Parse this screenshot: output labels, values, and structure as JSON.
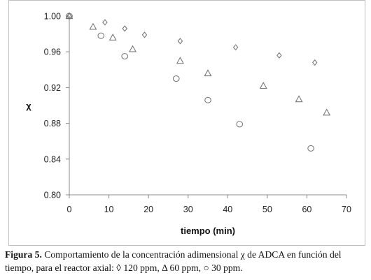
{
  "chart_data": {
    "type": "scatter",
    "xlabel": "tiempo (min)",
    "ylabel": "χ",
    "xlim": [
      0,
      70
    ],
    "ylim": [
      0.8,
      1.0
    ],
    "x_ticks": [
      "0",
      "10",
      "20",
      "30",
      "40",
      "50",
      "60",
      "70"
    ],
    "y_ticks": [
      "0.80",
      "0.84",
      "0.88",
      "0.92",
      "0.96",
      "1.00"
    ],
    "grid": false,
    "legend": "none",
    "series": [
      {
        "marker": "diamond",
        "points": [
          [
            0,
            1.0
          ],
          [
            9,
            0.993
          ],
          [
            14,
            0.986
          ],
          [
            19,
            0.979
          ],
          [
            28,
            0.972
          ],
          [
            42,
            0.965
          ],
          [
            53,
            0.956
          ],
          [
            62,
            0.948
          ]
        ]
      },
      {
        "marker": "triangle",
        "points": [
          [
            0,
            1.0
          ],
          [
            6,
            0.988
          ],
          [
            11,
            0.976
          ],
          [
            16,
            0.963
          ],
          [
            28,
            0.95
          ],
          [
            35,
            0.936
          ],
          [
            49,
            0.922
          ],
          [
            58,
            0.907
          ],
          [
            65,
            0.892
          ]
        ]
      },
      {
        "marker": "circle",
        "points": [
          [
            0,
            1.0
          ],
          [
            8,
            0.978
          ],
          [
            14,
            0.955
          ],
          [
            27,
            0.93
          ],
          [
            35,
            0.906
          ],
          [
            43,
            0.879
          ],
          [
            61,
            0.852
          ]
        ]
      }
    ],
    "marker_color": "#6e6e6e"
  },
  "caption": {
    "label": "Figura 5.",
    "text": " Comportamiento de la concentración adimensional χ de ADCA en función del tiempo, para el reactor axial: ◊ 120 ppm, Δ 60 ppm, ○ 30 ppm."
  }
}
